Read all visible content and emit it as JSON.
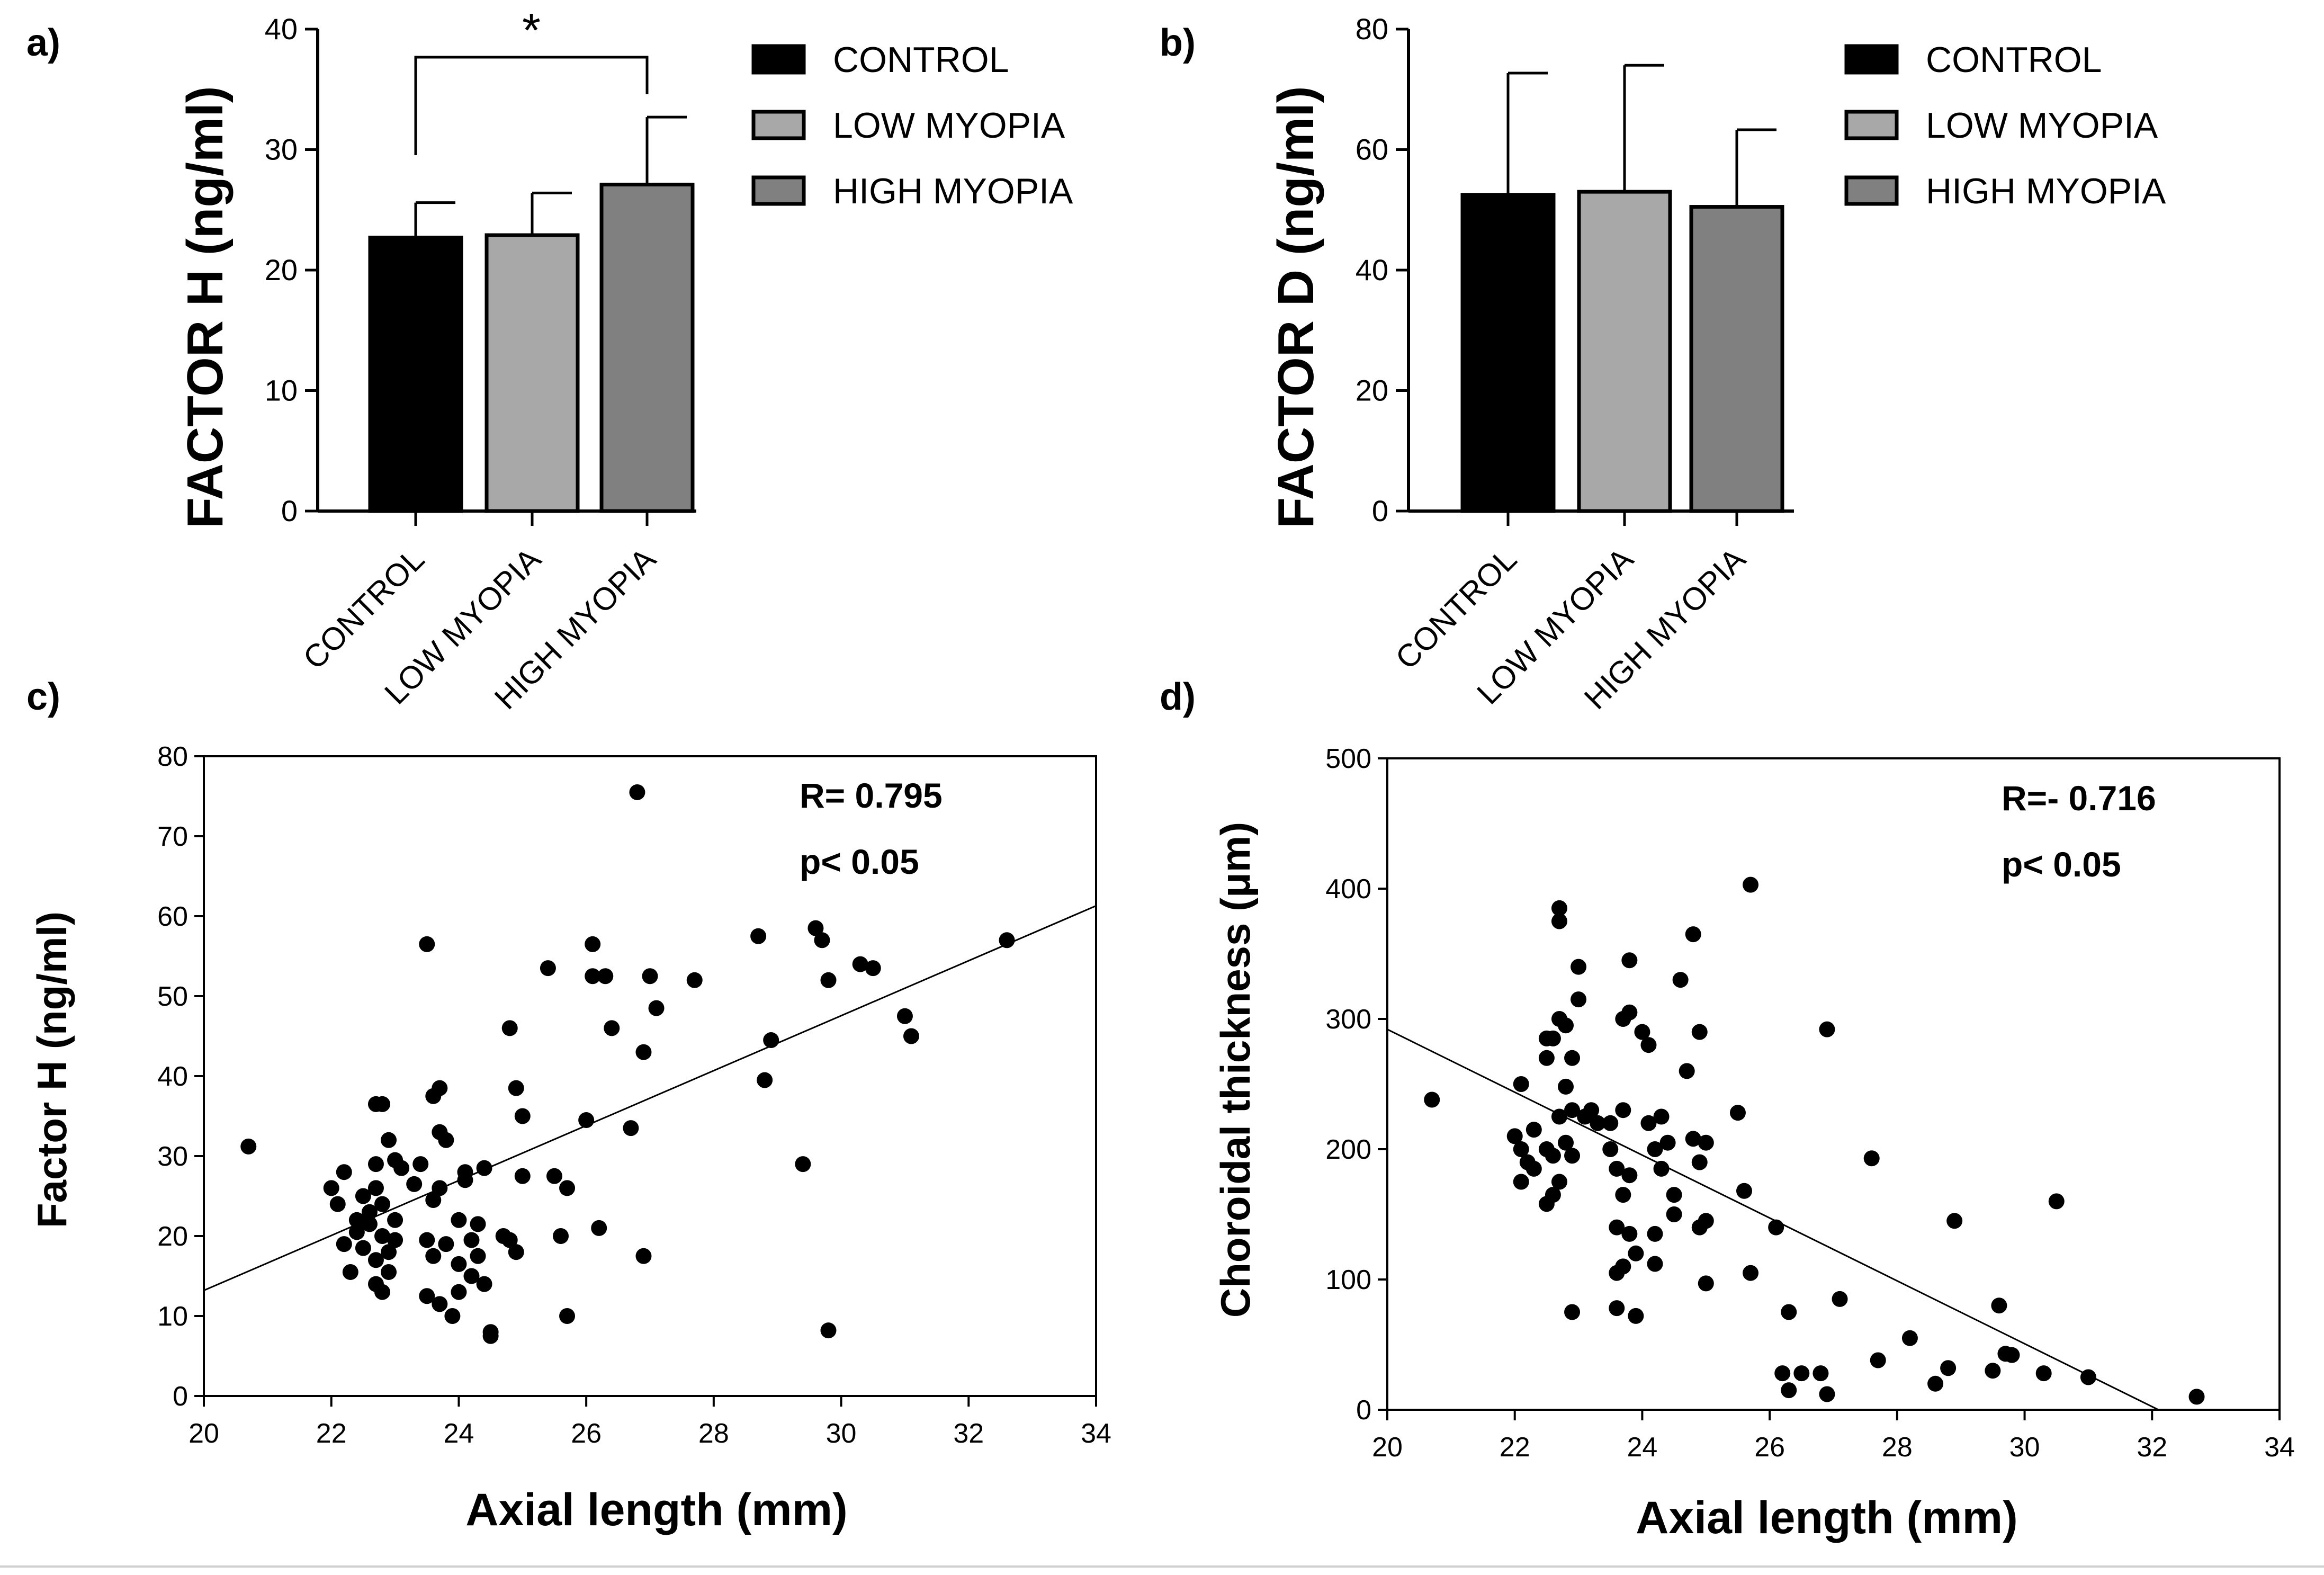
{
  "colors": {
    "control": "#000000",
    "low_myopia": "#a8a8a8",
    "high_myopia": "#808080",
    "axis": "#000000",
    "background": "#ffffff"
  },
  "chart_data": [
    {
      "panel": "a)",
      "type": "bar",
      "ylabel": "FACTOR H (ng/ml)",
      "categories": [
        "CONTROL",
        "LOW MYOPIA",
        "HIGH MYOPIA"
      ],
      "values": [
        22.7,
        22.9,
        27.1
      ],
      "errors": [
        2.9,
        3.5,
        5.6
      ],
      "ylim": [
        0,
        40
      ],
      "yticks": [
        0,
        10,
        20,
        30,
        40
      ],
      "legend": [
        "CONTROL",
        "LOW MYOPIA",
        "HIGH MYOPIA"
      ],
      "significance": {
        "from": 0,
        "to": 2,
        "label": "*"
      }
    },
    {
      "panel": "b)",
      "type": "bar",
      "ylabel": "FACTOR D (ng/ml)",
      "categories": [
        "CONTROL",
        "LOW MYOPIA",
        "HIGH MYOPIA"
      ],
      "values": [
        52.5,
        53.0,
        50.5
      ],
      "errors": [
        20.2,
        21.0,
        12.8
      ],
      "ylim": [
        0,
        80
      ],
      "yticks": [
        0,
        20,
        40,
        60,
        80
      ],
      "legend": [
        "CONTROL",
        "LOW MYOPIA",
        "HIGH MYOPIA"
      ]
    },
    {
      "panel": "c)",
      "type": "scatter",
      "xlabel": "Axial length (mm)",
      "ylabel": "Factor H  (ng/ml)",
      "xlim": [
        20,
        34
      ],
      "ylim": [
        0,
        80
      ],
      "xticks": [
        20,
        22,
        24,
        26,
        28,
        30,
        32,
        34
      ],
      "yticks": [
        0,
        10,
        20,
        30,
        40,
        50,
        60,
        70,
        80
      ],
      "annotations": [
        "R= 0.795",
        "p< 0.05"
      ],
      "trendline": {
        "x": [
          20,
          34
        ],
        "y": [
          13.2,
          61.3
        ]
      },
      "points": [
        [
          20.7,
          31.2
        ],
        [
          22.0,
          26
        ],
        [
          22.1,
          24
        ],
        [
          22.2,
          28
        ],
        [
          22.2,
          19
        ],
        [
          22.3,
          15.5
        ],
        [
          22.4,
          22
        ],
        [
          22.4,
          20.5
        ],
        [
          22.5,
          25
        ],
        [
          22.5,
          18.5
        ],
        [
          22.6,
          23
        ],
        [
          22.6,
          21.5
        ],
        [
          22.7,
          29
        ],
        [
          22.7,
          36.5
        ],
        [
          22.7,
          26
        ],
        [
          22.7,
          17
        ],
        [
          22.7,
          14
        ],
        [
          22.8,
          13
        ],
        [
          22.8,
          36.5
        ],
        [
          22.8,
          24
        ],
        [
          22.8,
          20
        ],
        [
          22.9,
          32
        ],
        [
          22.9,
          18
        ],
        [
          22.9,
          15.5
        ],
        [
          23.0,
          29.5
        ],
        [
          23.0,
          22
        ],
        [
          23.0,
          19.5
        ],
        [
          23.1,
          28.5
        ],
        [
          23.3,
          26.5
        ],
        [
          23.4,
          29
        ],
        [
          23.5,
          56.5
        ],
        [
          23.5,
          19.5
        ],
        [
          23.5,
          12.5
        ],
        [
          23.6,
          37.5
        ],
        [
          23.6,
          24.5
        ],
        [
          23.6,
          17.5
        ],
        [
          23.7,
          11.5
        ],
        [
          23.7,
          38.5
        ],
        [
          23.7,
          33
        ],
        [
          23.7,
          26
        ],
        [
          23.8,
          32
        ],
        [
          23.8,
          19
        ],
        [
          23.9,
          10
        ],
        [
          24.0,
          22
        ],
        [
          24.0,
          16.5
        ],
        [
          24.0,
          13
        ],
        [
          24.1,
          28
        ],
        [
          24.1,
          27
        ],
        [
          24.2,
          19.5
        ],
        [
          24.2,
          15
        ],
        [
          24.3,
          21.5
        ],
        [
          24.3,
          17.5
        ],
        [
          24.4,
          28.5
        ],
        [
          24.4,
          14
        ],
        [
          24.5,
          8
        ],
        [
          24.5,
          7.5
        ],
        [
          24.7,
          20
        ],
        [
          24.8,
          46
        ],
        [
          24.8,
          19.5
        ],
        [
          24.9,
          38.5
        ],
        [
          24.9,
          18
        ],
        [
          25.0,
          35
        ],
        [
          25.0,
          27.5
        ],
        [
          25.4,
          53.5
        ],
        [
          25.5,
          27.5
        ],
        [
          25.6,
          20
        ],
        [
          25.7,
          26
        ],
        [
          25.7,
          10
        ],
        [
          26.0,
          34.5
        ],
        [
          26.1,
          56.5
        ],
        [
          26.1,
          52.5
        ],
        [
          26.2,
          21
        ],
        [
          26.3,
          52.5
        ],
        [
          26.4,
          46
        ],
        [
          26.7,
          33.5
        ],
        [
          26.8,
          75.5
        ],
        [
          26.9,
          43
        ],
        [
          26.9,
          17.5
        ],
        [
          27.0,
          52.5
        ],
        [
          27.1,
          48.5
        ],
        [
          27.7,
          52
        ],
        [
          28.7,
          57.5
        ],
        [
          28.8,
          39.5
        ],
        [
          28.9,
          44.5
        ],
        [
          29.4,
          29
        ],
        [
          29.6,
          58.5
        ],
        [
          29.7,
          57
        ],
        [
          29.8,
          8.2
        ],
        [
          29.8,
          52
        ],
        [
          30.3,
          54
        ],
        [
          30.5,
          53.5
        ],
        [
          31.0,
          47.5
        ],
        [
          31.1,
          45
        ],
        [
          32.6,
          57
        ]
      ]
    },
    {
      "panel": "d)",
      "type": "scatter",
      "xlabel": "Axial length (mm)",
      "ylabel": "Choroidal thickness (μm)",
      "xlim": [
        20,
        34
      ],
      "ylim": [
        0,
        500
      ],
      "xticks": [
        20,
        22,
        24,
        26,
        28,
        30,
        32,
        34
      ],
      "yticks": [
        0,
        100,
        200,
        300,
        400,
        500
      ],
      "annotations": [
        "R=- 0.716",
        "p< 0.05"
      ],
      "trendline": {
        "x": [
          20,
          32.1
        ],
        "y": [
          292,
          0
        ]
      },
      "points": [
        [
          20.7,
          238
        ],
        [
          22.0,
          210
        ],
        [
          22.1,
          200
        ],
        [
          22.1,
          175
        ],
        [
          22.1,
          250
        ],
        [
          22.2,
          190
        ],
        [
          22.3,
          215
        ],
        [
          22.3,
          185
        ],
        [
          22.5,
          285
        ],
        [
          22.5,
          270
        ],
        [
          22.5,
          200
        ],
        [
          22.5,
          158
        ],
        [
          22.6,
          285
        ],
        [
          22.6,
          195
        ],
        [
          22.6,
          165
        ],
        [
          22.7,
          385
        ],
        [
          22.7,
          375
        ],
        [
          22.7,
          300
        ],
        [
          22.7,
          225
        ],
        [
          22.7,
          175
        ],
        [
          22.8,
          295
        ],
        [
          22.8,
          248
        ],
        [
          22.8,
          205
        ],
        [
          22.9,
          270
        ],
        [
          22.9,
          230
        ],
        [
          22.9,
          195
        ],
        [
          22.9,
          75
        ],
        [
          23.0,
          340
        ],
        [
          23.0,
          315
        ],
        [
          23.1,
          225
        ],
        [
          23.2,
          230
        ],
        [
          23.3,
          220
        ],
        [
          23.5,
          200
        ],
        [
          23.5,
          220
        ],
        [
          23.6,
          185
        ],
        [
          23.6,
          140
        ],
        [
          23.6,
          105
        ],
        [
          23.6,
          78
        ],
        [
          23.7,
          300
        ],
        [
          23.7,
          230
        ],
        [
          23.7,
          165
        ],
        [
          23.7,
          110
        ],
        [
          23.8,
          345
        ],
        [
          23.8,
          305
        ],
        [
          23.8,
          180
        ],
        [
          23.8,
          135
        ],
        [
          23.9,
          72
        ],
        [
          23.9,
          120
        ],
        [
          24.0,
          290
        ],
        [
          24.1,
          280
        ],
        [
          24.1,
          220
        ],
        [
          24.2,
          200
        ],
        [
          24.2,
          135
        ],
        [
          24.2,
          112
        ],
        [
          24.3,
          225
        ],
        [
          24.3,
          185
        ],
        [
          24.4,
          205
        ],
        [
          24.5,
          165
        ],
        [
          24.5,
          150
        ],
        [
          24.6,
          330
        ],
        [
          24.7,
          260
        ],
        [
          24.8,
          208
        ],
        [
          24.8,
          365
        ],
        [
          24.9,
          290
        ],
        [
          24.9,
          190
        ],
        [
          24.9,
          140
        ],
        [
          25.0,
          205
        ],
        [
          25.0,
          145
        ],
        [
          25.0,
          97
        ],
        [
          25.5,
          228
        ],
        [
          25.6,
          168
        ],
        [
          25.7,
          105
        ],
        [
          25.7,
          403
        ],
        [
          26.1,
          140
        ],
        [
          26.2,
          28
        ],
        [
          26.3,
          75
        ],
        [
          26.3,
          15
        ],
        [
          26.5,
          28
        ],
        [
          26.8,
          28
        ],
        [
          26.9,
          292
        ],
        [
          26.9,
          12
        ],
        [
          27.1,
          85
        ],
        [
          27.6,
          193
        ],
        [
          27.7,
          38
        ],
        [
          28.2,
          55
        ],
        [
          28.6,
          20
        ],
        [
          28.8,
          32
        ],
        [
          28.9,
          145
        ],
        [
          29.5,
          30
        ],
        [
          29.6,
          80
        ],
        [
          29.7,
          43
        ],
        [
          29.8,
          42
        ],
        [
          30.3,
          28
        ],
        [
          30.5,
          160
        ],
        [
          31.0,
          25
        ],
        [
          32.7,
          10
        ]
      ]
    }
  ]
}
